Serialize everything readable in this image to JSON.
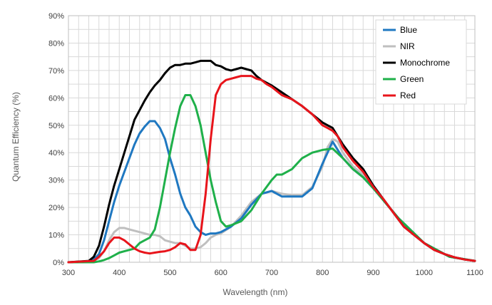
{
  "chart_data": {
    "type": "line",
    "xlabel": "Wavelength (nm)",
    "ylabel": "Quantum Efficiency (%)",
    "xlim": [
      300,
      1100
    ],
    "ylim": [
      0,
      90
    ],
    "x_ticks": [
      "300",
      "400",
      "500",
      "600",
      "700",
      "800",
      "900",
      "1000",
      "1100"
    ],
    "y_ticks": [
      "0%",
      "10%",
      "20%",
      "30%",
      "40%",
      "50%",
      "60%",
      "70%",
      "80%",
      "90%"
    ],
    "grid": true,
    "legend_position": "top-right",
    "series": [
      {
        "name": "Blue",
        "color": "#1f78c1",
        "x": [
          300,
          340,
          350,
          360,
          370,
          380,
          390,
          400,
          410,
          420,
          430,
          440,
          450,
          460,
          470,
          480,
          490,
          500,
          510,
          520,
          530,
          540,
          550,
          560,
          570,
          580,
          590,
          600,
          620,
          640,
          660,
          680,
          700,
          720,
          740,
          760,
          780,
          800,
          820,
          840,
          860,
          880,
          900,
          950,
          1000,
          1050,
          1100
        ],
        "y": [
          0,
          0,
          1,
          3,
          8,
          15,
          22,
          28,
          33,
          38,
          43,
          47,
          49.5,
          51.5,
          51.5,
          49,
          45,
          38,
          32,
          25,
          20,
          17,
          13,
          11,
          10,
          10.5,
          10.5,
          11,
          13,
          16,
          21,
          25,
          26,
          24,
          24,
          24,
          27,
          36,
          44,
          38,
          34,
          31,
          27,
          16,
          7,
          2,
          0.5
        ]
      },
      {
        "name": "NIR",
        "color": "#bfbfbf",
        "x": [
          300,
          340,
          350,
          360,
          370,
          380,
          390,
          400,
          410,
          420,
          430,
          440,
          450,
          460,
          470,
          480,
          490,
          500,
          510,
          520,
          530,
          540,
          550,
          560,
          570,
          580,
          590,
          600,
          620,
          640,
          660,
          680,
          700,
          720,
          740,
          760,
          780,
          800,
          810,
          820,
          830,
          840,
          860,
          880,
          900,
          950,
          1000,
          1050,
          1100
        ],
        "y": [
          0,
          0,
          0.5,
          1.5,
          4,
          8,
          11,
          12.5,
          12.5,
          12,
          11.5,
          11,
          10.5,
          10,
          10,
          9.5,
          8,
          7.5,
          7,
          7,
          6,
          5,
          5,
          5.5,
          7,
          9,
          10,
          10.5,
          13,
          17,
          22,
          25,
          26,
          25,
          24.5,
          24.5,
          27.5,
          35,
          42,
          45,
          44,
          40,
          35,
          32,
          27,
          16,
          7,
          2,
          0.5
        ]
      },
      {
        "name": "Monochrome",
        "color": "#000000",
        "x": [
          300,
          340,
          350,
          360,
          370,
          380,
          390,
          400,
          410,
          420,
          430,
          440,
          450,
          460,
          470,
          480,
          490,
          500,
          510,
          520,
          530,
          540,
          550,
          560,
          570,
          580,
          590,
          600,
          610,
          620,
          630,
          640,
          650,
          660,
          670,
          680,
          690,
          700,
          720,
          740,
          760,
          780,
          800,
          810,
          820,
          830,
          840,
          860,
          880,
          900,
          920,
          940,
          960,
          980,
          1000,
          1020,
          1040,
          1060,
          1080,
          1100
        ],
        "y": [
          0,
          0.5,
          2,
          6,
          13,
          21,
          28,
          34,
          40,
          46,
          52,
          55.5,
          59,
          62,
          64.5,
          66.5,
          69,
          71,
          72,
          72,
          72.5,
          72.5,
          73,
          73.5,
          73.5,
          73.5,
          72,
          71.5,
          70.5,
          70,
          70.5,
          71,
          70.5,
          70,
          68,
          66.5,
          65.5,
          64.5,
          62,
          59.5,
          57,
          54,
          51,
          50,
          49,
          46,
          43,
          38,
          34,
          28,
          23,
          18,
          13,
          10,
          7,
          4.5,
          3,
          1.8,
          1,
          0.5
        ]
      },
      {
        "name": "Green",
        "color": "#1fb04a",
        "x": [
          300,
          350,
          360,
          370,
          380,
          390,
          400,
          410,
          420,
          430,
          440,
          450,
          460,
          470,
          480,
          490,
          500,
          510,
          520,
          530,
          540,
          550,
          560,
          570,
          580,
          590,
          600,
          610,
          620,
          640,
          660,
          680,
          700,
          710,
          720,
          740,
          760,
          780,
          800,
          820,
          840,
          860,
          880,
          900,
          950,
          1000,
          1050,
          1100
        ],
        "y": [
          0,
          0,
          0.3,
          0.8,
          1.5,
          2.5,
          3.5,
          4,
          4.5,
          5,
          7,
          8,
          9,
          12,
          20,
          30,
          40,
          49,
          57,
          61,
          61,
          57,
          50,
          40,
          30,
          22,
          15,
          13,
          13.5,
          15,
          19,
          25,
          30,
          32,
          32,
          34,
          38,
          40,
          41,
          41.5,
          38,
          34,
          31,
          27,
          16,
          7,
          2,
          0.5
        ]
      },
      {
        "name": "Red",
        "color": "#e8141b",
        "x": [
          300,
          350,
          360,
          370,
          380,
          390,
          400,
          410,
          420,
          430,
          440,
          450,
          460,
          470,
          480,
          490,
          500,
          510,
          520,
          530,
          540,
          550,
          560,
          570,
          580,
          590,
          600,
          610,
          620,
          630,
          640,
          650,
          660,
          670,
          680,
          690,
          700,
          720,
          740,
          760,
          780,
          800,
          810,
          820,
          830,
          840,
          860,
          880,
          900,
          920,
          940,
          960,
          980,
          1000,
          1020,
          1040,
          1060,
          1080,
          1100
        ],
        "y": [
          0,
          0.5,
          2,
          4,
          7,
          9,
          9,
          8,
          6.5,
          5,
          4,
          3.5,
          3.2,
          3.5,
          3.8,
          4,
          4.5,
          5.5,
          7,
          6.5,
          4.5,
          4.5,
          10,
          25,
          45,
          61,
          65,
          66.5,
          67,
          67.5,
          68,
          68,
          68,
          67,
          66.5,
          65,
          64,
          61,
          59.5,
          57,
          54,
          50,
          49,
          48,
          46,
          42,
          37,
          33,
          27.5,
          23,
          18,
          13,
          10,
          7,
          4.5,
          3,
          1.8,
          1,
          0.5
        ]
      }
    ]
  }
}
